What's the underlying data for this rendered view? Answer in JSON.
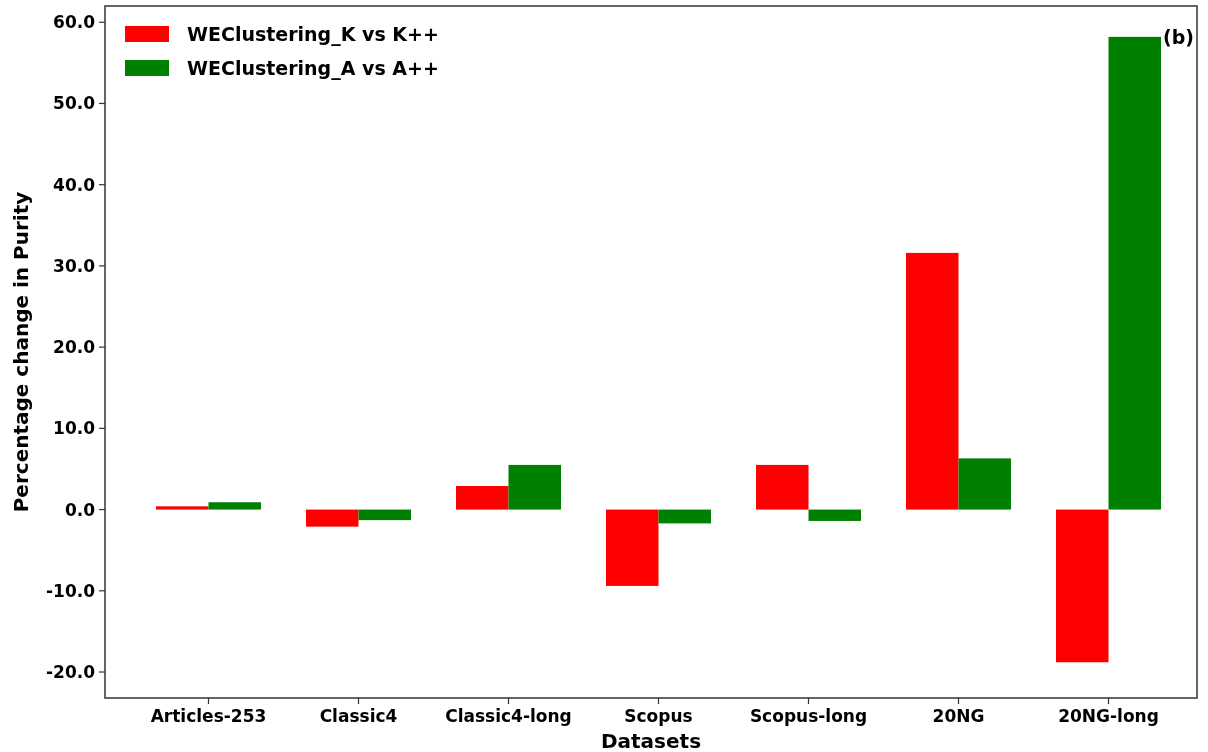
{
  "chart_data": {
    "type": "bar",
    "xlabel": "Datasets",
    "ylabel": "Percentage change in Purity",
    "categories": [
      "Articles-253",
      "Classic4",
      "Classic4-long",
      "Scopus",
      "Scopus-long",
      "20NG",
      "20NG-long"
    ],
    "series": [
      {
        "name": "WEClustering_K vs K++",
        "color": "#ff0000",
        "values": [
          0.4,
          -2.1,
          2.9,
          -9.4,
          5.5,
          31.6,
          -18.8
        ]
      },
      {
        "name": "WEClustering_A vs A++",
        "color": "#008000",
        "values": [
          0.9,
          -1.3,
          5.5,
          -1.7,
          -1.4,
          6.3,
          58.2
        ]
      }
    ],
    "ylim": [
      -23.2,
      62.0
    ],
    "yticks": [
      {
        "value": -20,
        "label": "-20.0"
      },
      {
        "value": -10,
        "label": "-10.0"
      },
      {
        "value": 0,
        "label": "0.0"
      },
      {
        "value": 10,
        "label": "10.0"
      },
      {
        "value": 20,
        "label": "20.0"
      },
      {
        "value": 30,
        "label": "30.0"
      },
      {
        "value": 40,
        "label": "40.0"
      },
      {
        "value": 50,
        "label": "50.0"
      },
      {
        "value": 60,
        "label": "60.0"
      }
    ],
    "legend": "top left",
    "annotations": [
      "(b)"
    ]
  }
}
